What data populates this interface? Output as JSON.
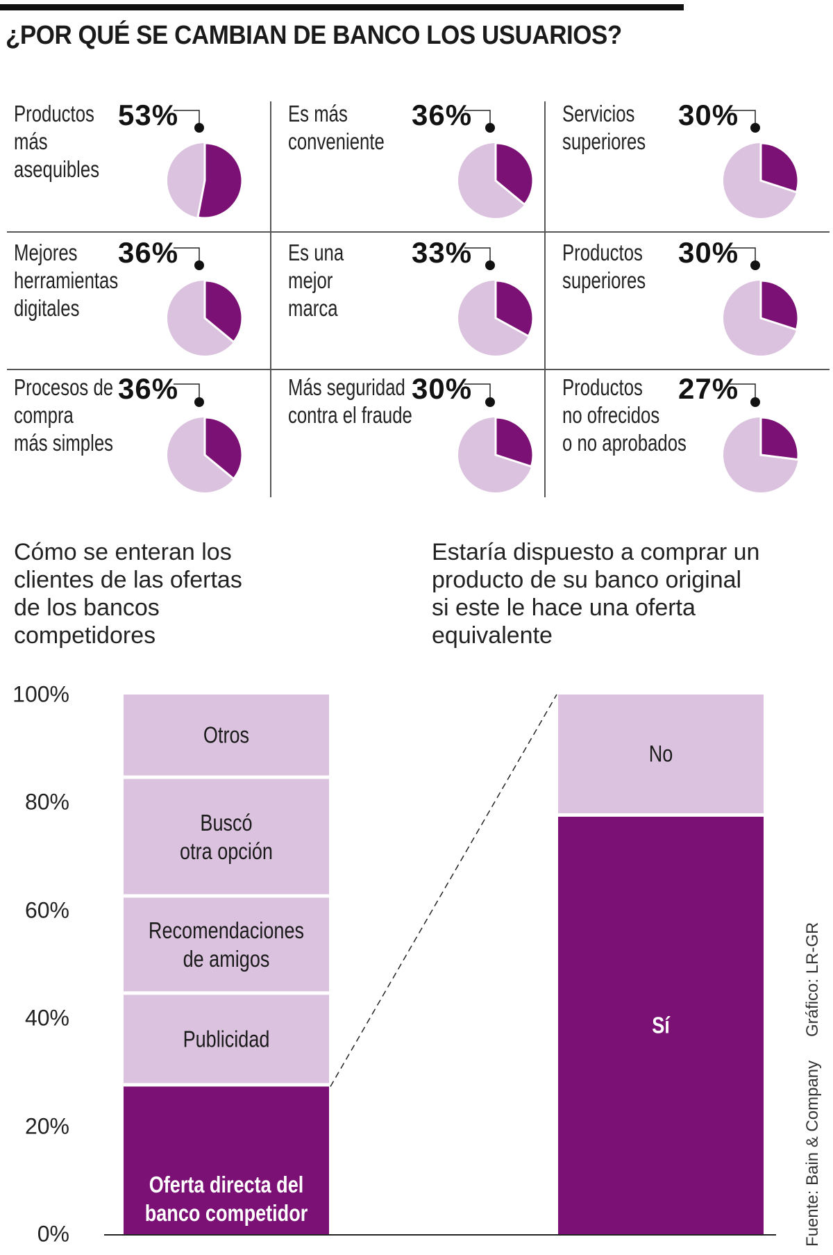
{
  "title": "¿POR QUÉ SE CAMBIAN DE BANCO LOS USUARIOS?",
  "colors": {
    "dark": "#7b1174",
    "light": "#dbc2de",
    "rule": "#555555"
  },
  "reasons": [
    {
      "label": "Productos\nmás\nasequibles",
      "pct_text": "53%",
      "value": 53
    },
    {
      "label": "Es más\nconveniente",
      "pct_text": "36%",
      "value": 36
    },
    {
      "label": "Servicios\nsuperiores",
      "pct_text": "30%",
      "value": 30
    },
    {
      "label": "Mejores\nherramientas\ndigitales",
      "pct_text": "36%",
      "value": 36
    },
    {
      "label": "Es una\nmejor\nmarca",
      "pct_text": "33%",
      "value": 33
    },
    {
      "label": "Productos\nsuperiores",
      "pct_text": "30%",
      "value": 30
    },
    {
      "label": "Procesos de\ncompra\nmás simples",
      "pct_text": "36%",
      "value": 36
    },
    {
      "label": "Más seguridad\ncontra el fraude",
      "pct_text": "30%",
      "value": 30
    },
    {
      "label": "Productos\nno ofrecidos\no no aprobados",
      "pct_text": "27%",
      "value": 27
    }
  ],
  "chart_data": {
    "type": "bar",
    "subtype": "stacked-100",
    "ylim": [
      0,
      100
    ],
    "yticks": [
      "0%",
      "20%",
      "40%",
      "60%",
      "80%",
      "100%"
    ],
    "bars": [
      {
        "title": "Cómo se enteran los\nclientes de las ofertas\nde los bancos\ncompetidores",
        "segments": [
          {
            "label": "Oferta directa del\nbanco competidor",
            "value": 28,
            "shade": "dark"
          },
          {
            "label": "Publicidad",
            "value": 17,
            "shade": "light"
          },
          {
            "label": "Recomendaciones\nde amigos",
            "value": 18,
            "shade": "light"
          },
          {
            "label": "Buscó\notra opción",
            "value": 22,
            "shade": "light"
          },
          {
            "label": "Otros",
            "value": 15,
            "shade": "light"
          }
        ]
      },
      {
        "title": "Estaría dispuesto a comprar un\nproducto de su banco original\nsi este le hace una oferta\nequivalente",
        "segments": [
          {
            "label": "Sí",
            "value": 78,
            "shade": "dark"
          },
          {
            "label": "No",
            "value": 22,
            "shade": "light"
          }
        ]
      }
    ]
  },
  "credits": {
    "graphic": "Gráfico: LR-GR",
    "source": "Fuente: Bain & Company"
  }
}
